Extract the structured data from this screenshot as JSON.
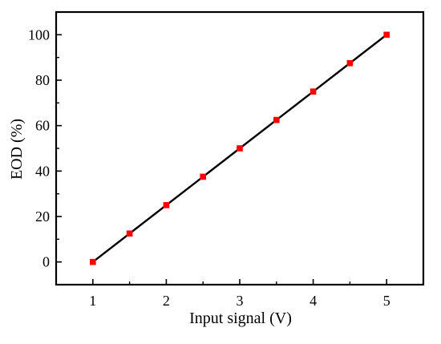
{
  "chart_data": {
    "type": "line",
    "xlabel": "Input signal (V)",
    "ylabel": "EOD (%)",
    "xlim": [
      0.5,
      5.5
    ],
    "ylim": [
      -10,
      110
    ],
    "xticks": [
      1,
      2,
      3,
      4,
      5
    ],
    "yticks": [
      0,
      20,
      40,
      60,
      80,
      100
    ],
    "xtick_labels": [
      "1",
      "2",
      "3",
      "4",
      "5"
    ],
    "ytick_labels": [
      "0",
      "20",
      "40",
      "60",
      "80",
      "100"
    ],
    "grid": false,
    "series": [
      {
        "line_color": "#000000",
        "marker": "square",
        "marker_color": "#ff0000",
        "x": [
          1,
          1.5,
          2,
          2.5,
          3,
          3.5,
          4,
          4.5,
          5
        ],
        "y": [
          0,
          12.5,
          25,
          37.5,
          50,
          62.5,
          75,
          87.5,
          100
        ]
      }
    ]
  }
}
